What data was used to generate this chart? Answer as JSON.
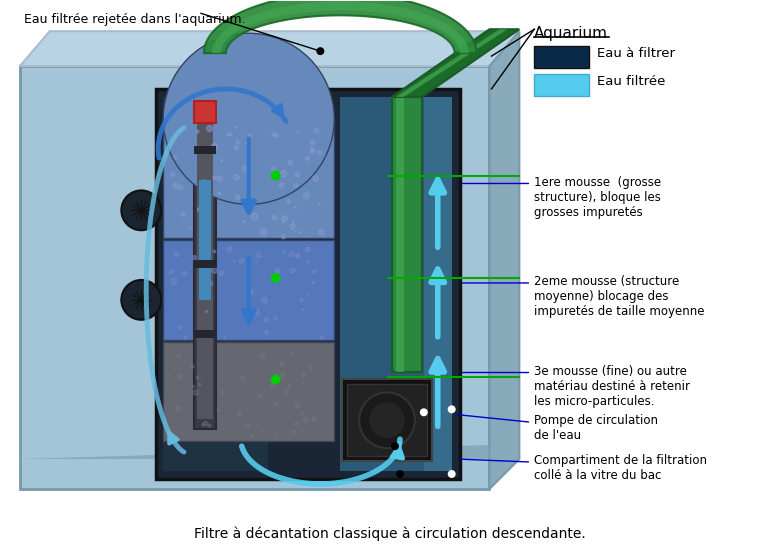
{
  "title": "Filtre à décantation classique à circulation descendante.",
  "label_top_left": "Eau filtrée rejetée dans l'aquarium.",
  "label_aquarium": "Aquarium",
  "label_legend1": "Eau à filtrer",
  "label_legend2": "Eau filtrée",
  "label1": "1ere mousse  (grosse\nstructure), bloque les\ngrosses impuretés",
  "label2": "2eme mousse (structure\nmoyenne) blocage des\nimpuretés de taille moyenne",
  "label3": "3e mousse (fine) ou autre\nmatériau destiné à retenir\nles micro-particules.",
  "label4": "Pompe de circulation\nde l'eau",
  "label5": "Compartiment de la filtration\ncollé à la vitre du bac",
  "aquarium_bg": "#a4c4d8",
  "aquarium_top": "#b8d4e4",
  "aquarium_right": "#88aabb",
  "filter_dark": "#1a2535",
  "filter_left_water": "#1e3a50",
  "filter_right_water": "#2a5878",
  "foam1_color": "#6688bb",
  "foam2_color": "#5577bb",
  "foam3_color": "#656870",
  "pump_body": "#111111",
  "pump_face": "#1e1e1e",
  "heater_body": "#555560",
  "heater_top_red": "#cc3333",
  "heater_tube_blue": "#4488bb",
  "green_pipe_dark": "#1a6a28",
  "green_pipe_mid": "#2a8a3a",
  "green_pipe_light": "#44aa55",
  "cyan_col": "#55aabb",
  "arrow_blue": "#3377cc",
  "arrow_cyan": "#55ccee",
  "line_col": "#0000cc",
  "green_line_col": "#00aa00",
  "legend_dark_col": "#0a2a4a",
  "legend_light_col": "#55ccee"
}
